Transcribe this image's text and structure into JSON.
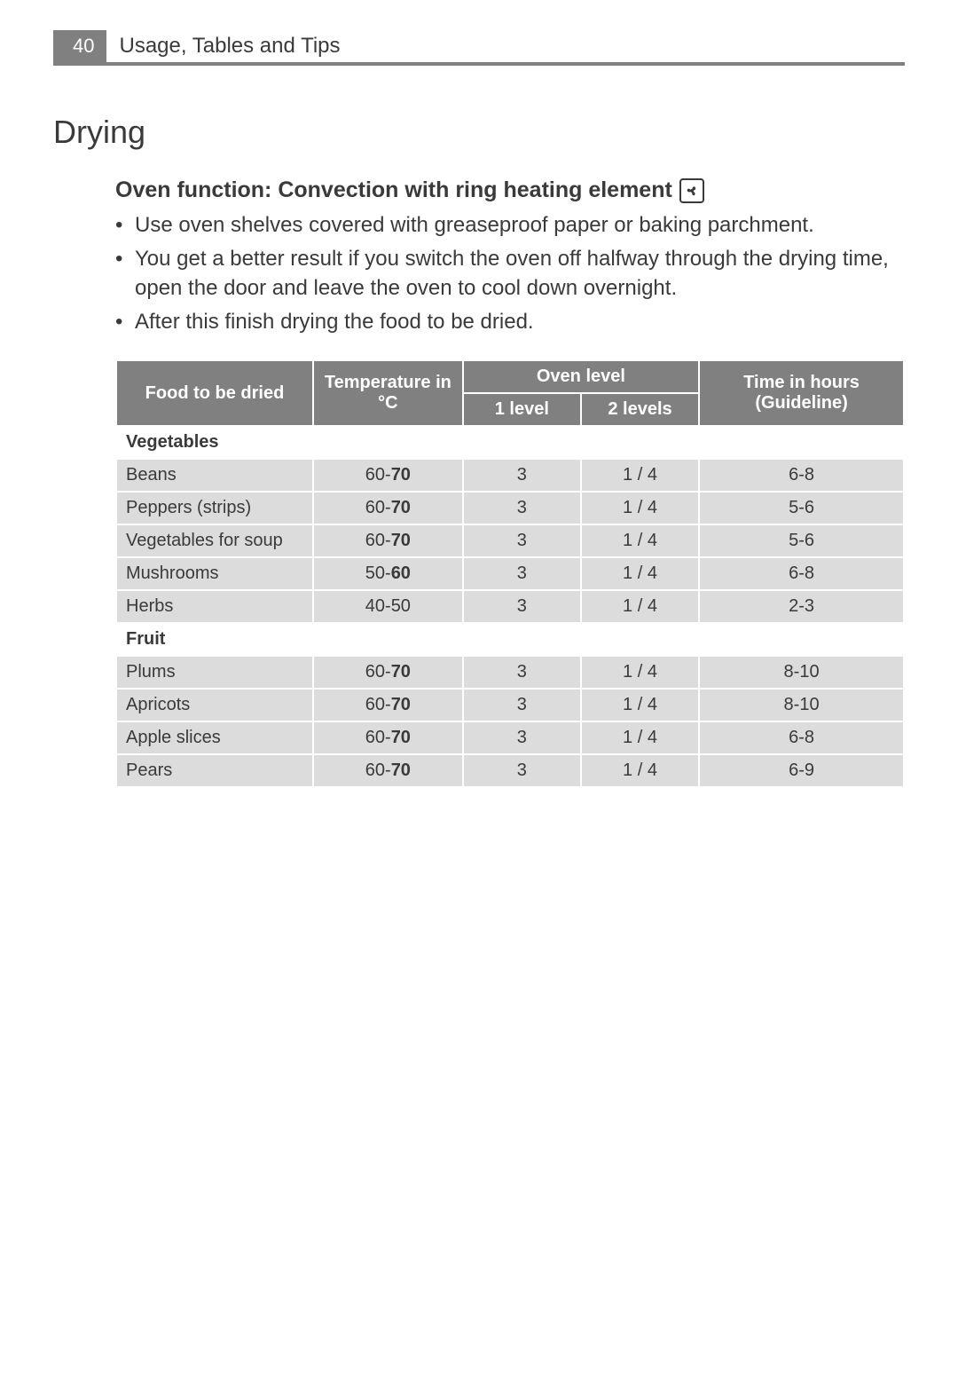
{
  "header": {
    "page_number": "40",
    "title": "Usage, Tables and Tips"
  },
  "section": {
    "title": "Drying",
    "subheading": "Oven function: Convection with ring heating element",
    "icon_name": "fan-convection-icon",
    "bullets": [
      "Use oven shelves covered with greaseproof paper or baking parchment.",
      "You get a better result if you switch the oven off halfway through the drying time, open the door and leave the oven to cool down overnight.",
      "After this finish drying the food to be dried."
    ]
  },
  "table": {
    "headers": {
      "food": "Food to be dried",
      "temp": "Temperature in °C",
      "oven_level": "Oven level",
      "level1": "1 level",
      "level2": "2 levels",
      "time": "Time in hours (Guideline)"
    },
    "groups": [
      {
        "label": "Vegetables",
        "rows": [
          {
            "food": "Beans",
            "temp_low": "60-",
            "temp_high": "70",
            "l1": "3",
            "l2": "1 / 4",
            "time": "6-8"
          },
          {
            "food": "Peppers (strips)",
            "temp_low": "60-",
            "temp_high": "70",
            "l1": "3",
            "l2": "1 / 4",
            "time": "5-6"
          },
          {
            "food": "Vegetables for soup",
            "temp_low": "60-",
            "temp_high": "70",
            "l1": "3",
            "l2": "1 / 4",
            "time": "5-6"
          },
          {
            "food": "Mushrooms",
            "temp_low": "50-",
            "temp_high": "60",
            "l1": "3",
            "l2": "1 / 4",
            "time": "6-8"
          },
          {
            "food": "Herbs",
            "temp_low": "40-50",
            "temp_high": "",
            "l1": "3",
            "l2": "1 / 4",
            "time": "2-3"
          }
        ]
      },
      {
        "label": "Fruit",
        "rows": [
          {
            "food": "Plums",
            "temp_low": "60-",
            "temp_high": "70",
            "l1": "3",
            "l2": "1 / 4",
            "time": "8-10"
          },
          {
            "food": "Apricots",
            "temp_low": "60-",
            "temp_high": "70",
            "l1": "3",
            "l2": "1 / 4",
            "time": "8-10"
          },
          {
            "food": "Apple slices",
            "temp_low": "60-",
            "temp_high": "70",
            "l1": "3",
            "l2": "1 / 4",
            "time": "6-8"
          },
          {
            "food": "Pears",
            "temp_low": "60-",
            "temp_high": "70",
            "l1": "3",
            "l2": "1 / 4",
            "time": "6-9"
          }
        ]
      }
    ]
  },
  "styling": {
    "page_bg": "#ffffff",
    "text_color": "#3a3a3a",
    "header_bar_color": "#808080",
    "header_text_color": "#ffffff",
    "table_header_bg": "#808080",
    "table_header_fg": "#ffffff",
    "table_cell_bg": "#dcdcdc",
    "table_section_bg": "#ffffff",
    "table_border_color": "#ffffff",
    "section_title_fontsize": 36,
    "subhead_fontsize": 25,
    "body_fontsize": 24,
    "table_fontsize": 20,
    "column_widths_pct": {
      "food": 25,
      "temp": 19,
      "l1": 15,
      "l2": 15,
      "time": 26
    }
  }
}
